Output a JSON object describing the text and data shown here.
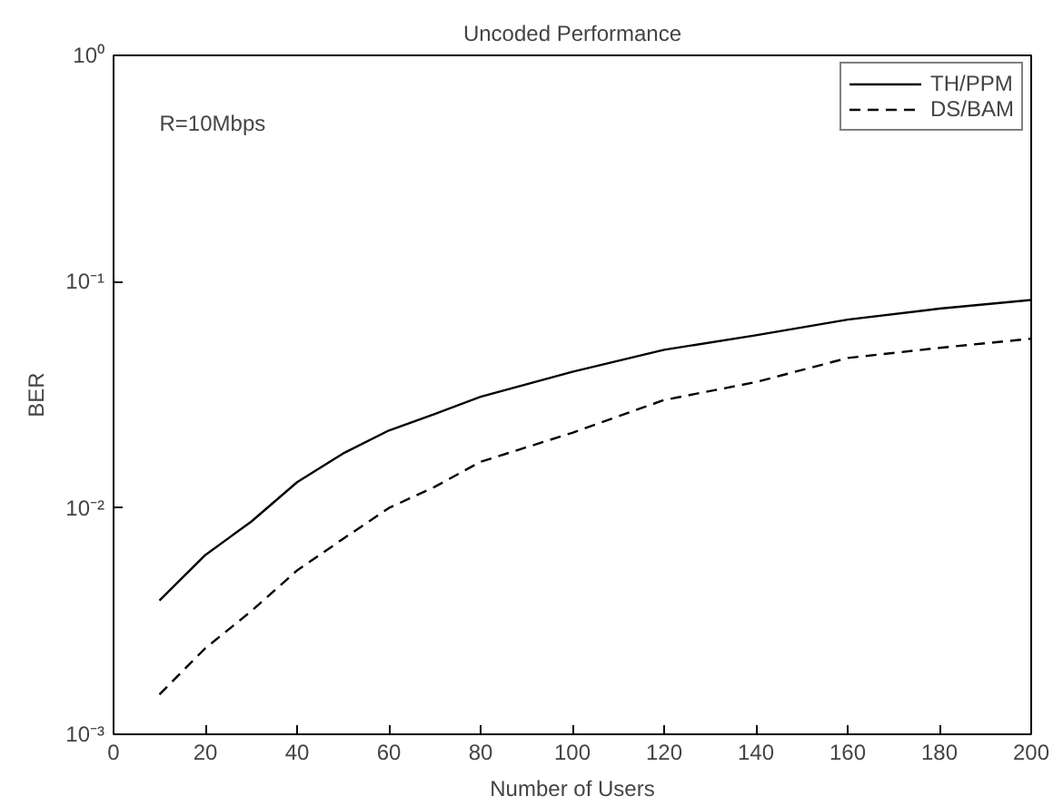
{
  "chart_data": {
    "type": "line",
    "title": "Uncoded Performance",
    "xlabel": "Number of Users",
    "ylabel": "BER",
    "annotations": [
      "R=10Mbps"
    ],
    "x": [
      10,
      20,
      30,
      40,
      50,
      60,
      70,
      80,
      100,
      120,
      140,
      160,
      180,
      200
    ],
    "series": [
      {
        "name": "TH/PPM",
        "color": "#000000",
        "line_style": "solid",
        "values": [
          0.0039,
          0.0062,
          0.0087,
          0.013,
          0.0174,
          0.022,
          0.026,
          0.031,
          0.04,
          0.05,
          0.058,
          0.068,
          0.076,
          0.083
        ]
      },
      {
        "name": "DS/BAM",
        "color": "#000000",
        "line_style": "dashed",
        "values": [
          0.0015,
          0.0024,
          0.0035,
          0.0053,
          0.0073,
          0.01,
          0.0124,
          0.016,
          0.0215,
          0.03,
          0.036,
          0.046,
          0.051,
          0.056
        ]
      }
    ],
    "log": "y",
    "xlim": [
      0,
      200
    ],
    "ylim": [
      0.001,
      1
    ],
    "xticks": [
      0,
      20,
      40,
      60,
      80,
      100,
      120,
      140,
      160,
      180,
      200
    ],
    "yticks": [
      {
        "value": 0.001,
        "label": "10⁻³"
      },
      {
        "value": 0.01,
        "label": "10⁻²"
      },
      {
        "value": 0.1,
        "label": "10⁻¹"
      },
      {
        "value": 1,
        "label": "10⁰"
      }
    ],
    "grid": false,
    "legend": "top right"
  }
}
